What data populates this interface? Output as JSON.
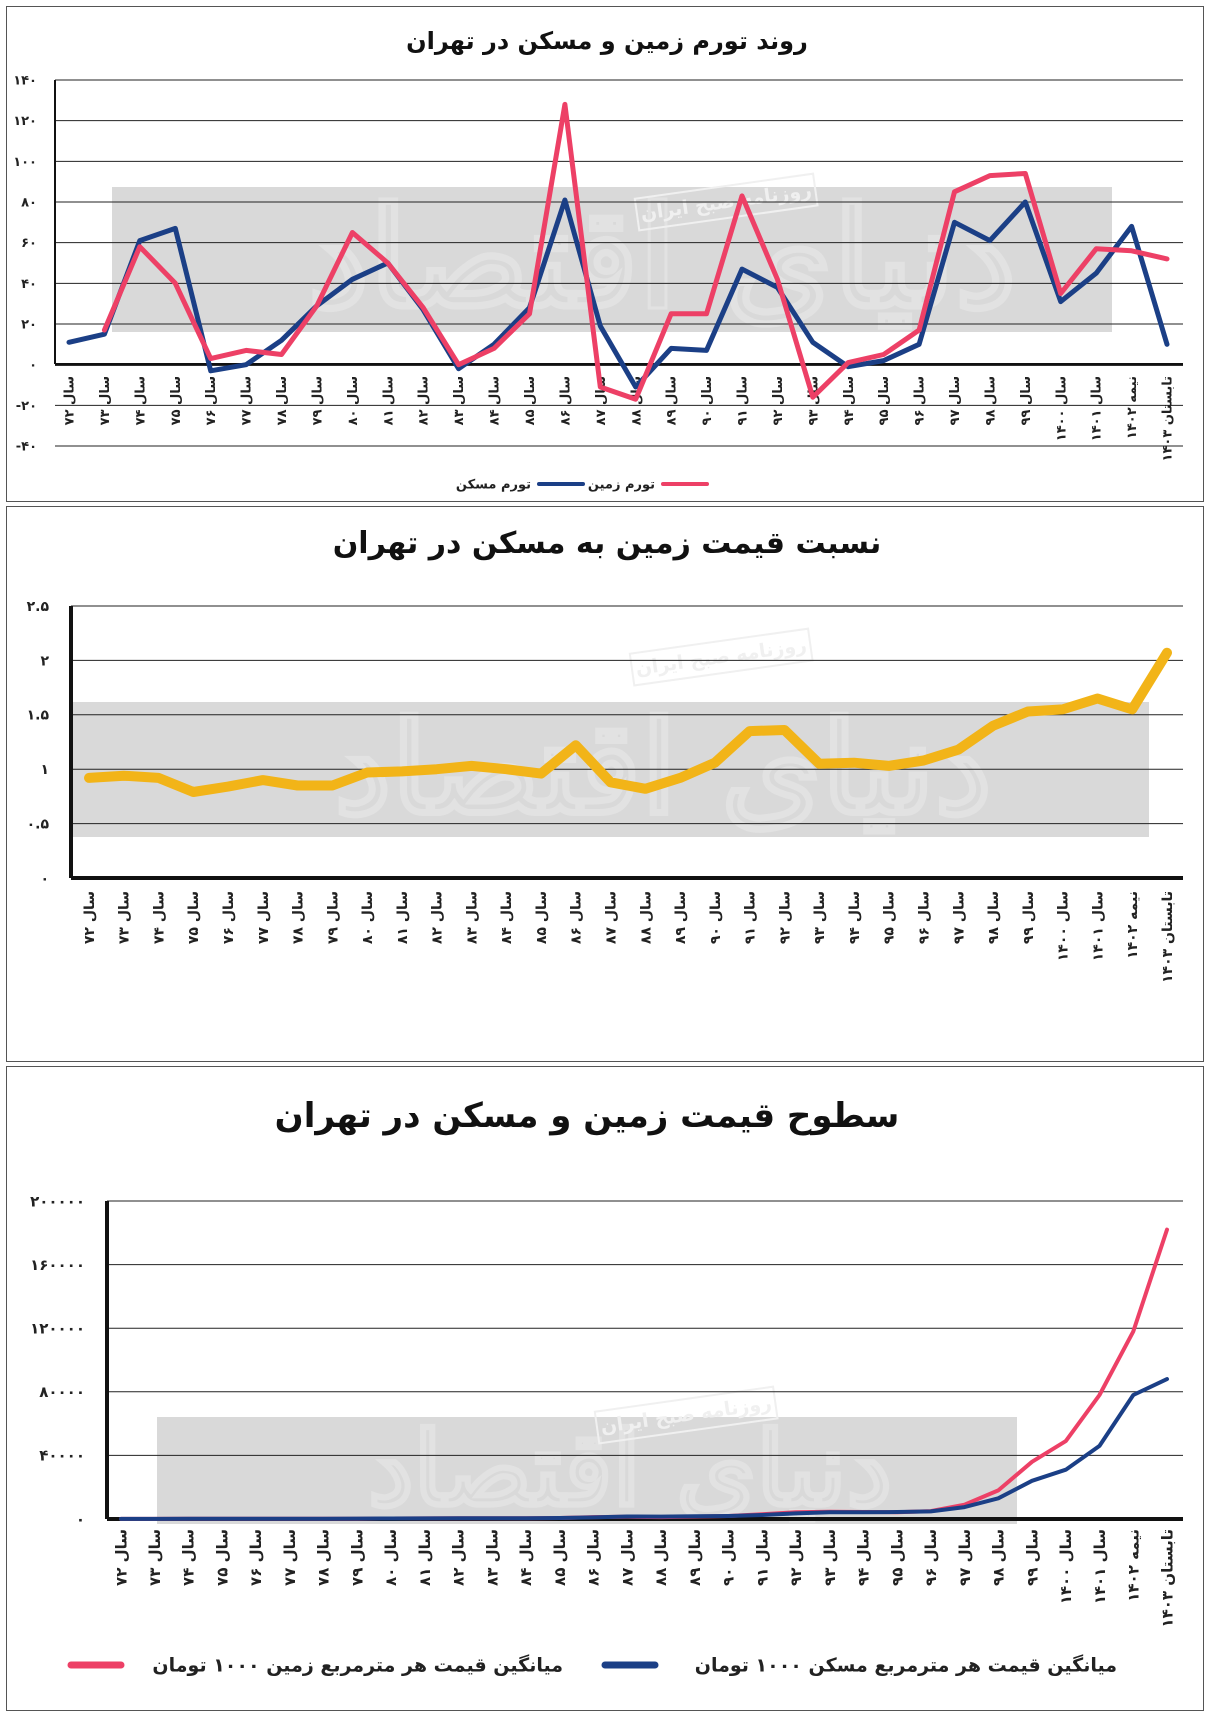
{
  "watermark": {
    "brand": "دنیای اقتصاد",
    "source": "روزنامه صبح ایران"
  },
  "chart_data": [
    {
      "type": "line",
      "title": "روند تورم زمین و مسکن در تهران",
      "categories": [
        "سال ۷۲",
        "سال ۷۳",
        "سال ۷۴",
        "سال ۷۵",
        "سال ۷۶",
        "سال ۷۷",
        "سال ۷۸",
        "سال ۷۹",
        "سال ۸۰",
        "سال ۸۱",
        "سال ۸۲",
        "سال ۸۳",
        "سال ۸۴",
        "سال ۸۵",
        "سال ۸۶",
        "سال ۸۷",
        "سال ۸۸",
        "سال ۸۹",
        "سال ۹۰",
        "سال ۹۱",
        "سال ۹۲",
        "سال ۹۳",
        "سال ۹۴",
        "سال ۹۵",
        "سال ۹۶",
        "سال ۹۷",
        "سال ۹۸",
        "سال ۹۹",
        "سال ۱۴۰۰",
        "سال ۱۴۰۱",
        "نیمه ۱۴۰۲",
        "تابستان ۱۴۰۳"
      ],
      "y_ticks": [
        {
          "v": 140,
          "t": "۱۴۰"
        },
        {
          "v": 120,
          "t": "۱۲۰"
        },
        {
          "v": 100,
          "t": "۱۰۰"
        },
        {
          "v": 80,
          "t": "۸۰"
        },
        {
          "v": 60,
          "t": "۶۰"
        },
        {
          "v": 40,
          "t": "۴۰"
        },
        {
          "v": 20,
          "t": "۲۰"
        },
        {
          "v": 0,
          "t": "۰"
        },
        {
          "v": -20,
          "t": "-۲۰"
        },
        {
          "v": -40,
          "t": "-۴۰"
        }
      ],
      "ylim": [
        -40,
        140
      ],
      "grid": true,
      "series": [
        {
          "name": "تورم مسکن",
          "color": "#1b3f86",
          "values": [
            11,
            15,
            61,
            67,
            -3,
            0,
            12,
            29,
            42,
            50,
            27,
            -2,
            10,
            28,
            81,
            19,
            -11,
            8,
            7,
            47,
            38,
            11,
            -1,
            2,
            10,
            70,
            61,
            80,
            31,
            45,
            68,
            10
          ]
        },
        {
          "name": "تورم زمین",
          "color": "#ed4066",
          "values": [
            null,
            17,
            58,
            40,
            3,
            7,
            5,
            29,
            65,
            50,
            28,
            0,
            8,
            25,
            128,
            -11,
            -17,
            25,
            25,
            83,
            42,
            -16,
            1,
            5,
            17,
            85,
            93,
            94,
            35,
            57,
            56,
            52
          ]
        }
      ],
      "legend_position": "bottom-center"
    },
    {
      "type": "line",
      "title": "نسبت قیمت زمین به مسکن در تهران",
      "categories": [
        "سال ۷۲",
        "سال ۷۳",
        "سال ۷۴",
        "سال ۷۵",
        "سال ۷۶",
        "سال ۷۷",
        "سال ۷۸",
        "سال ۷۹",
        "سال ۸۰",
        "سال ۸۱",
        "سال ۸۲",
        "سال ۸۳",
        "سال ۸۴",
        "سال ۸۵",
        "سال ۸۶",
        "سال ۸۷",
        "سال ۸۸",
        "سال ۸۹",
        "سال ۹۰",
        "سال ۹۱",
        "سال ۹۲",
        "سال ۹۳",
        "سال ۹۴",
        "سال ۹۵",
        "سال ۹۶",
        "سال ۹۷",
        "سال ۹۸",
        "سال ۹۹",
        "سال ۱۴۰۰",
        "سال ۱۴۰۱",
        "نیمه ۱۴۰۲",
        "تابستان ۱۴۰۳"
      ],
      "y_ticks": [
        {
          "v": 2.5,
          "t": "۲.۵"
        },
        {
          "v": 2,
          "t": "۲"
        },
        {
          "v": 1.5,
          "t": "۱.۵"
        },
        {
          "v": 1,
          "t": "۱"
        },
        {
          "v": 0.5,
          "t": "۰.۵"
        },
        {
          "v": 0,
          "t": "۰"
        }
      ],
      "ylim": [
        0,
        2.5
      ],
      "grid": true,
      "series": [
        {
          "color": "#f2b418",
          "values": [
            0.92,
            0.94,
            0.92,
            0.79,
            0.84,
            0.9,
            0.85,
            0.85,
            0.97,
            0.98,
            1.0,
            1.03,
            1.0,
            0.96,
            1.22,
            0.88,
            0.82,
            0.92,
            1.06,
            1.35,
            1.36,
            1.05,
            1.06,
            1.03,
            1.08,
            1.18,
            1.4,
            1.53,
            1.55,
            1.65,
            1.55,
            2.07
          ]
        }
      ]
    },
    {
      "type": "line",
      "title": "سطوح قیمت زمین و مسکن در تهران",
      "categories": [
        "سال ۷۲",
        "سال ۷۳",
        "سال ۷۴",
        "سال ۷۵",
        "سال ۷۶",
        "سال ۷۷",
        "سال ۷۸",
        "سال ۷۹",
        "سال ۸۰",
        "سال ۸۱",
        "سال ۸۲",
        "سال ۸۳",
        "سال ۸۴",
        "سال ۸۵",
        "سال ۸۶",
        "سال ۸۷",
        "سال ۸۸",
        "سال ۸۹",
        "سال ۹۰",
        "سال ۹۱",
        "سال ۹۲",
        "سال ۹۳",
        "سال ۹۴",
        "سال ۹۵",
        "سال ۹۶",
        "سال ۹۷",
        "سال ۹۸",
        "سال ۹۹",
        "سال ۱۴۰۰",
        "سال ۱۴۰۱",
        "نیمه ۱۴۰۲",
        "تابستان ۱۴۰۳"
      ],
      "y_ticks": [
        {
          "v": 200000,
          "t": "۲۰۰۰۰۰"
        },
        {
          "v": 160000,
          "t": "۱۶۰۰۰۰"
        },
        {
          "v": 120000,
          "t": "۱۲۰۰۰۰"
        },
        {
          "v": 80000,
          "t": "۸۰۰۰۰"
        },
        {
          "v": 40000,
          "t": "۴۰۰۰۰"
        },
        {
          "v": 0,
          "t": "۰"
        }
      ],
      "ylim": [
        0,
        200000
      ],
      "grid": true,
      "series": [
        {
          "name": "میانگین قیمت هر مترمربع زمین ۱۰۰۰ تومان",
          "color": "#ed4066",
          "values": [
            60,
            70,
            110,
            140,
            150,
            160,
            170,
            220,
            300,
            380,
            470,
            480,
            520,
            600,
            1200,
            1400,
            1200,
            1500,
            1900,
            3000,
            4200,
            4500,
            4400,
            4300,
            5000,
            9000,
            18000,
            36000,
            49000,
            78000,
            118000,
            182000
          ]
        },
        {
          "name": "میانگین قیمت هر مترمربع مسکن ۱۰۰۰ تومان",
          "color": "#1b3f86",
          "values": [
            60,
            80,
            120,
            180,
            180,
            180,
            200,
            260,
            320,
            400,
            470,
            470,
            520,
            620,
            1000,
            1600,
            1500,
            1700,
            1900,
            2500,
            3500,
            4300,
            4200,
            4400,
            4800,
            7500,
            13000,
            24000,
            31000,
            46000,
            78000,
            88000
          ]
        }
      ],
      "legend_position": "bottom-center"
    }
  ]
}
